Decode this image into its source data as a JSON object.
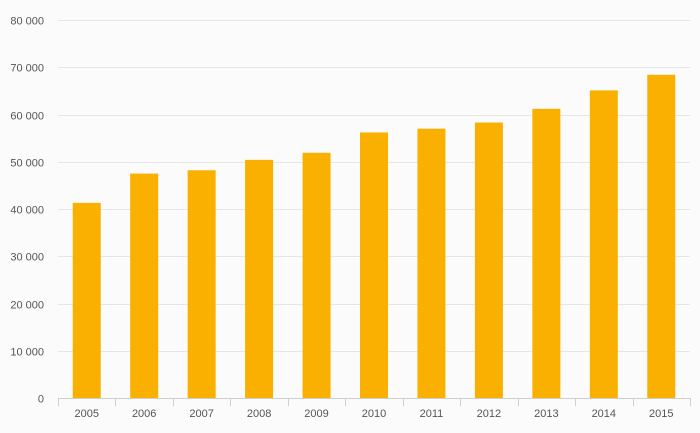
{
  "chart_data": {
    "type": "bar",
    "title": "",
    "xlabel": "",
    "ylabel": "",
    "categories": [
      "2005",
      "2006",
      "2007",
      "2008",
      "2009",
      "2010",
      "2011",
      "2012",
      "2013",
      "2014",
      "2015"
    ],
    "series": [
      {
        "name": "",
        "values": [
          41300,
          47500,
          48200,
          50400,
          51900,
          56200,
          57000,
          58300,
          61200,
          65100,
          68400
        ]
      }
    ],
    "ylim": [
      0,
      80000
    ],
    "yticks": [
      0,
      10000,
      20000,
      30000,
      40000,
      50000,
      60000,
      70000,
      80000
    ],
    "ytick_labels": [
      "0",
      "10 000",
      "20 000",
      "30 000",
      "40 000",
      "50 000",
      "60 000",
      "70 000",
      "80 000"
    ],
    "grid": true,
    "legend": "none"
  },
  "colors": {
    "bar": "#f9b000",
    "grid": "#e6e6e6",
    "axis": "#cfcfcf",
    "text": "#555555",
    "background": "#fbfbfb"
  }
}
